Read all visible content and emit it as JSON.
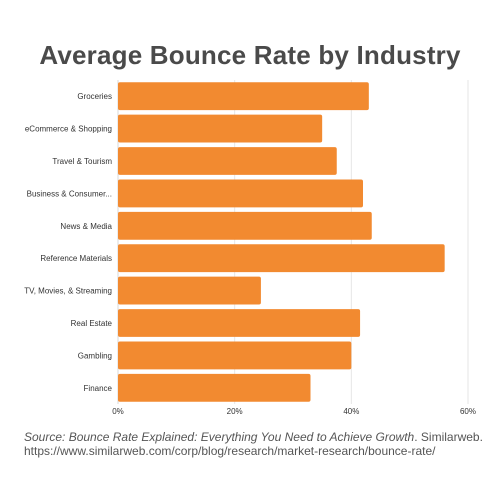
{
  "colors": {
    "bar": "#f28a30",
    "title": "#4a4a4a",
    "label": "#333333",
    "grid": "#e6e6e6",
    "axis": "#d9d9d9",
    "source": "#555555"
  },
  "source": {
    "prefix": "Source: Bounce Rate Explained: Everything You Need to Achieve Growth",
    "publisher": ". Similarweb.",
    "url": "https://www.similarweb.com/corp/blog/research/market-research/bounce-rate/"
  },
  "chart_data": {
    "type": "bar",
    "orientation": "horizontal",
    "title": "Average Bounce Rate by Industry",
    "xlabel": "",
    "ylabel": "",
    "categories": [
      "Groceries",
      "eCommerce & Shopping",
      "Travel & Tourism",
      "Business & Consumer...",
      "News & Media",
      "Reference Materials",
      "TV, Movies, & Streaming",
      "Real Estate",
      "Gambling",
      "Finance"
    ],
    "values": [
      43,
      35,
      37.5,
      42,
      43.5,
      56,
      24.5,
      41.5,
      40,
      33
    ],
    "xlim": [
      0,
      60
    ],
    "xticks": [
      0,
      20,
      40,
      60
    ],
    "xtick_labels": [
      "0%",
      "20%",
      "40%",
      "60%"
    ],
    "grid": true,
    "legend": "none"
  }
}
